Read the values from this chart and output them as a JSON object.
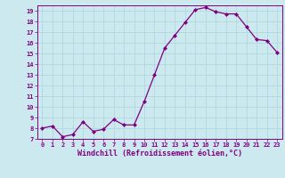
{
  "x": [
    0,
    1,
    2,
    3,
    4,
    5,
    6,
    7,
    8,
    9,
    10,
    11,
    12,
    13,
    14,
    15,
    16,
    17,
    18,
    19,
    20,
    21,
    22,
    23
  ],
  "y": [
    8.0,
    8.2,
    7.2,
    7.4,
    8.6,
    7.7,
    7.9,
    8.8,
    8.3,
    8.3,
    10.5,
    13.0,
    15.5,
    16.7,
    17.9,
    19.1,
    19.3,
    18.9,
    18.7,
    18.7,
    17.5,
    16.3,
    16.2,
    15.1
  ],
  "xlim_min": -0.5,
  "xlim_max": 23.5,
  "ylim_min": 7,
  "ylim_max": 19.5,
  "yticks": [
    7,
    8,
    9,
    10,
    11,
    12,
    13,
    14,
    15,
    16,
    17,
    18,
    19
  ],
  "xticks": [
    0,
    1,
    2,
    3,
    4,
    5,
    6,
    7,
    8,
    9,
    10,
    11,
    12,
    13,
    14,
    15,
    16,
    17,
    18,
    19,
    20,
    21,
    22,
    23
  ],
  "xlabel": "Windchill (Refroidissement éolien,°C)",
  "line_color": "#800080",
  "marker": "D",
  "marker_size": 2.0,
  "bg_color": "#cce9f0",
  "grid_color": "#b0d8e0",
  "tick_color": "#800080",
  "xlabel_color": "#800080",
  "tick_fontsize": 5.0,
  "xlabel_fontsize": 6.0,
  "linewidth": 0.9
}
